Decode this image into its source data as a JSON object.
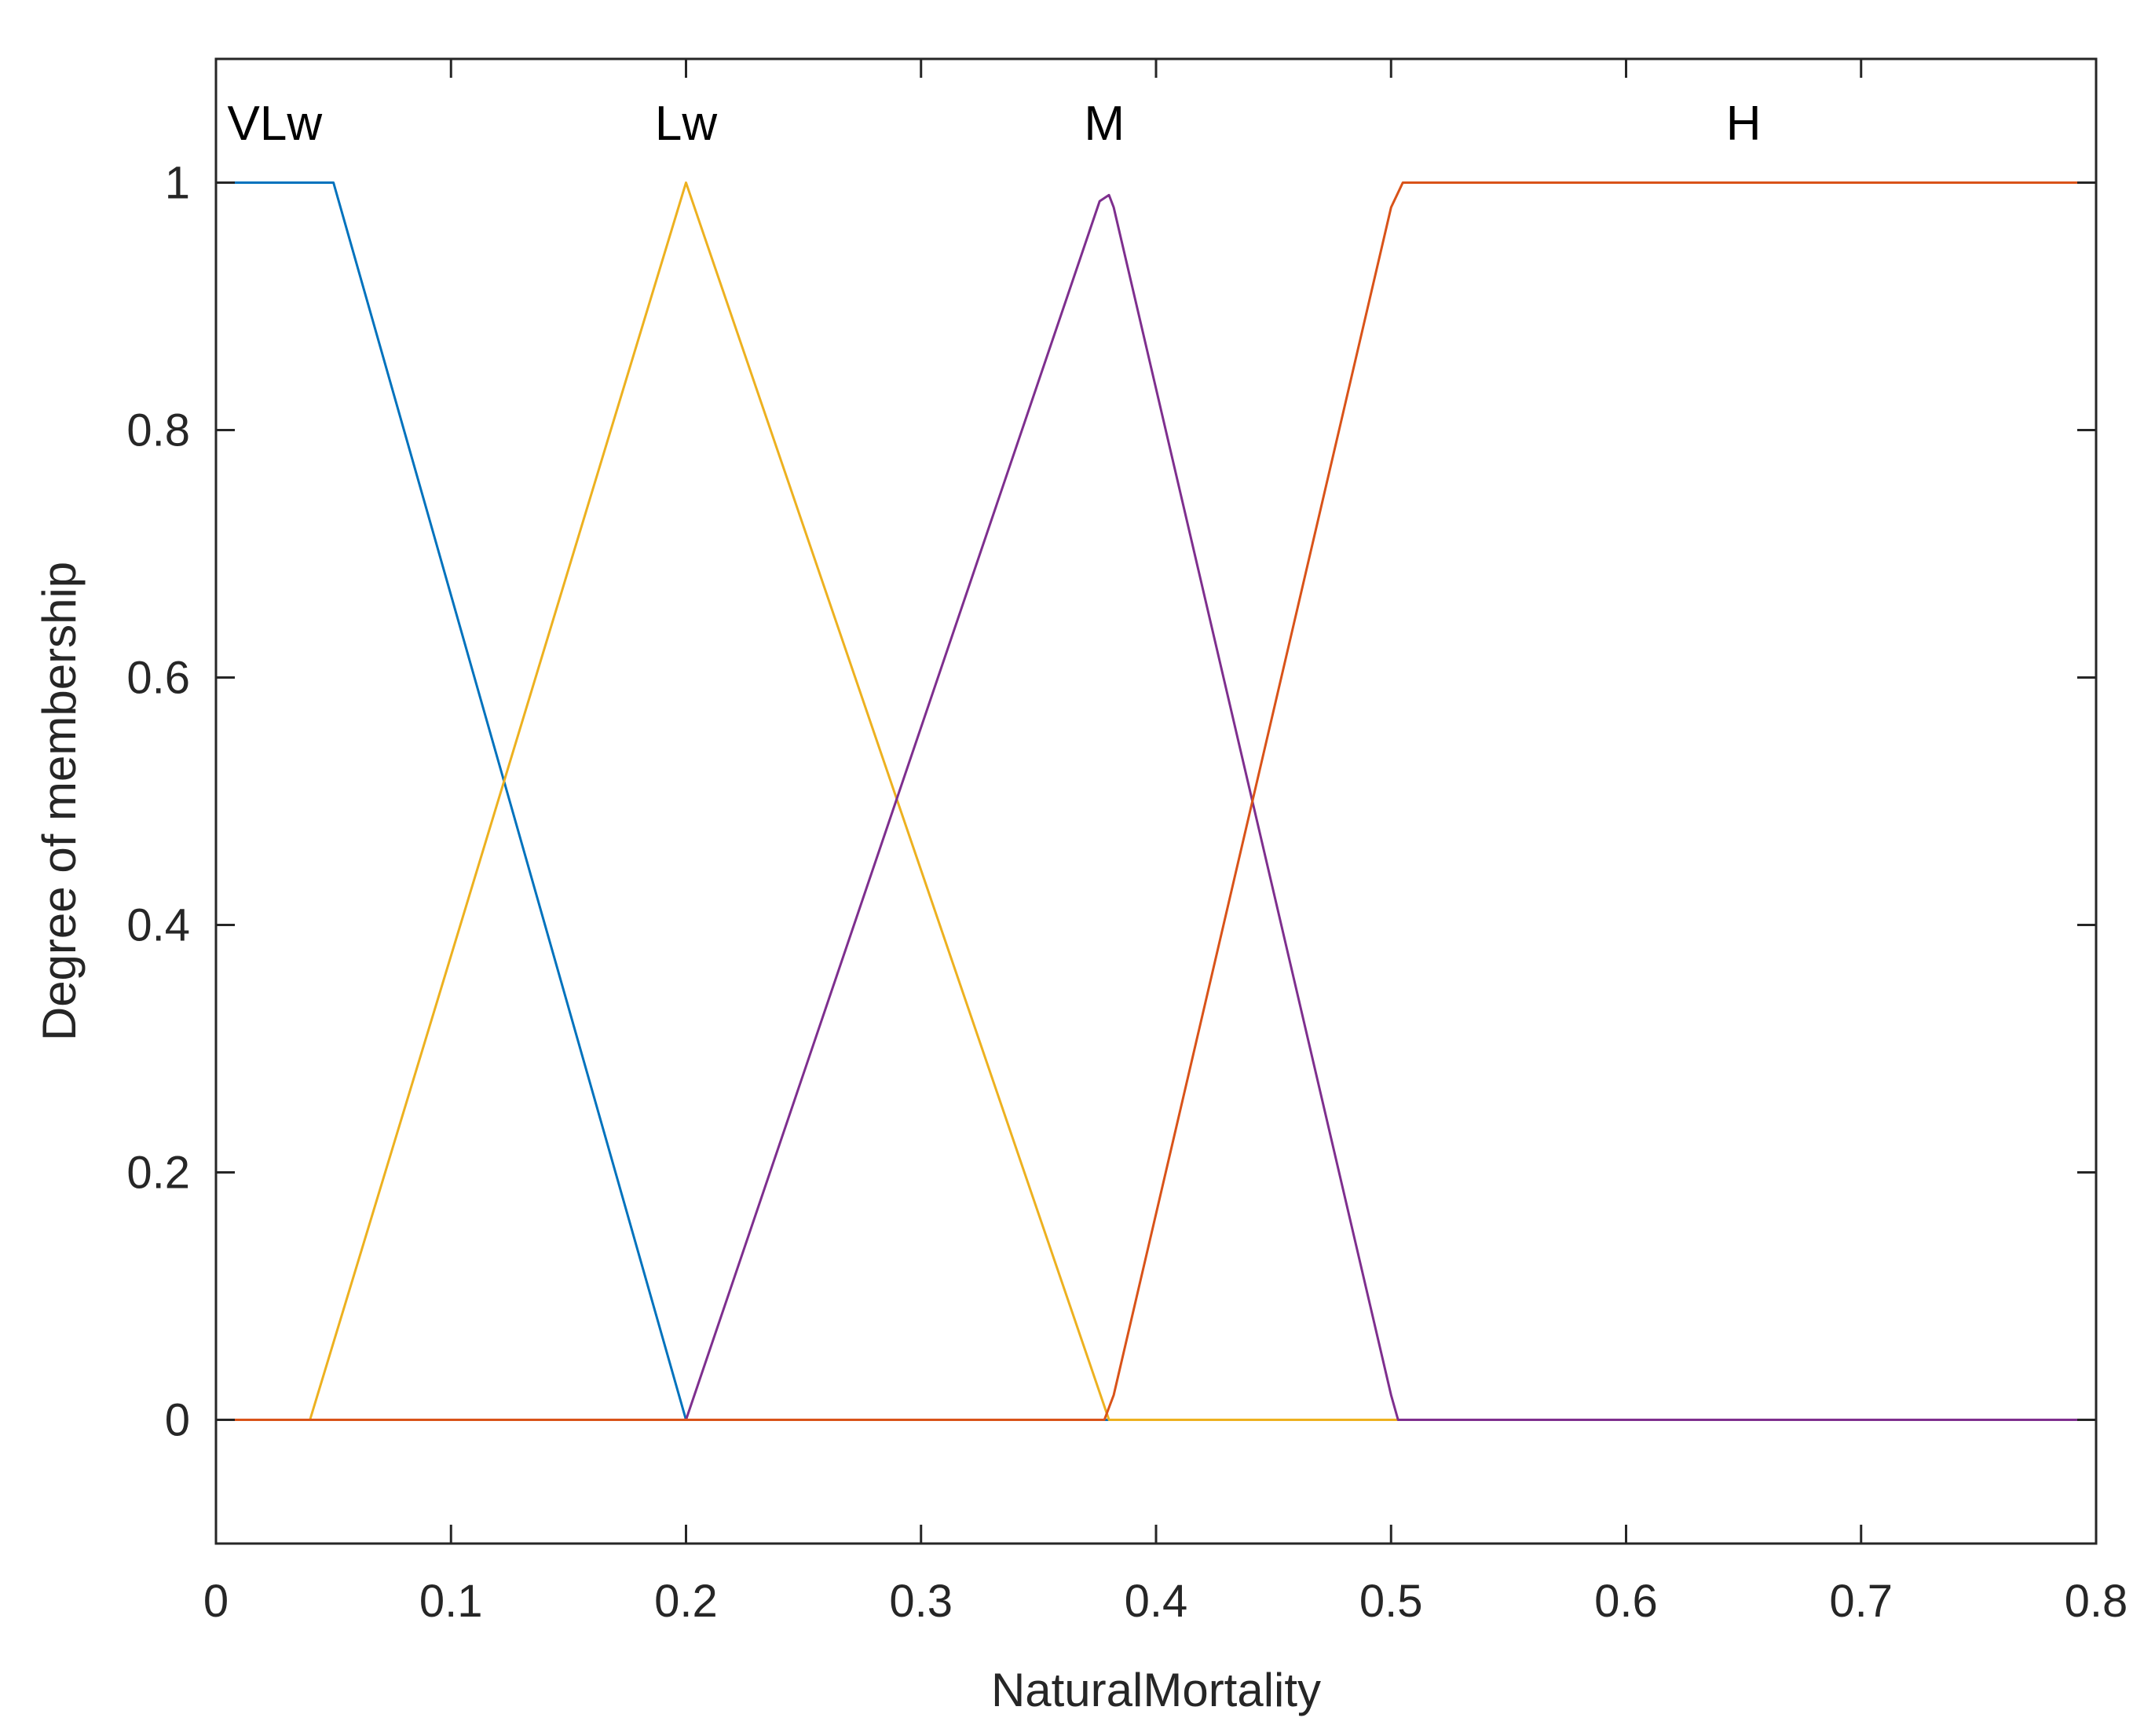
{
  "chart_data": {
    "type": "line",
    "title": "",
    "xlabel": "NaturalMortality",
    "ylabel": "Degree of membership",
    "xlim": [
      0,
      0.8
    ],
    "ylim": [
      -0.1,
      1.1
    ],
    "xticks": [
      0,
      0.1,
      0.2,
      0.3,
      0.4,
      0.5,
      0.6,
      0.7,
      0.8
    ],
    "yticks": [
      0,
      0.2,
      0.4,
      0.6,
      0.8,
      1
    ],
    "xtick_labels": [
      "0",
      "0.1",
      "0.2",
      "0.3",
      "0.4",
      "0.5",
      "0.6",
      "0.7",
      "0.8"
    ],
    "ytick_labels": [
      "0",
      "0.2",
      "0.4",
      "0.6",
      "0.8",
      "1"
    ],
    "grid": false,
    "series": [
      {
        "name": "VLw",
        "color": "#0072BD",
        "label_x": 0.025,
        "x": [
          0,
          0.05,
          0.2,
          0.8
        ],
        "y": [
          1,
          1,
          0,
          0
        ]
      },
      {
        "name": "Lw",
        "color": "#EDB120",
        "label_x": 0.2,
        "x": [
          0,
          0.04,
          0.2,
          0.38,
          0.8
        ],
        "y": [
          0,
          0,
          1,
          0,
          0
        ]
      },
      {
        "name": "M",
        "color": "#7E2F8E",
        "label_x": 0.378,
        "x": [
          0,
          0.2,
          0.376,
          0.38,
          0.382,
          0.5,
          0.503,
          0.8
        ],
        "y": [
          0,
          0,
          0.985,
          0.99,
          0.98,
          0.02,
          0,
          0
        ]
      },
      {
        "name": "H",
        "color": "#D95319",
        "label_x": 0.65,
        "x": [
          0,
          0.378,
          0.382,
          0.5,
          0.505,
          0.8
        ],
        "y": [
          0,
          0,
          0.02,
          0.98,
          1,
          1
        ]
      }
    ]
  }
}
